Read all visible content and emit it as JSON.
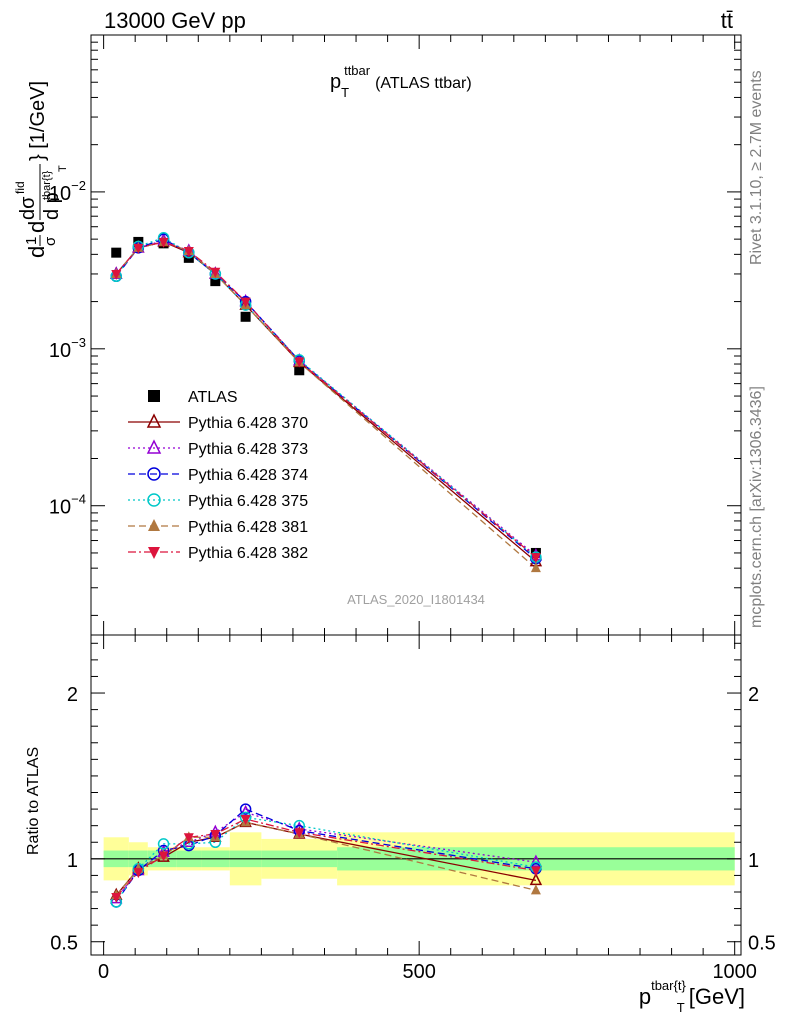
{
  "header": {
    "energy_label": "13000 GeV pp",
    "process_label": "tt̄"
  },
  "side": {
    "rivet_label": "Rivet 3.1.10, ≥ 2.7M events",
    "source_label": "mcplots.cern.ch [arXiv:1306.3436]"
  },
  "analysis_id": "ATLAS_2020_I1801434",
  "chart_data": [
    {
      "panel": "main",
      "type": "line",
      "title": {
        "main": "p",
        "sup": "ttbar",
        "sub": "T",
        "rest": "(ATLAS ttbar)"
      },
      "ylabel": {
        "d1": "d",
        "num": "1",
        "den": "σ",
        "d2": "d",
        "dnum": "dσ",
        "dnum_sup": "fid",
        "dden": "d p",
        "dden_sub": "tbar{t}",
        "dden_sub2": "T",
        "units": "} [1/GeV]"
      },
      "y_scale": "log",
      "ylim": [
        1.5e-05,
        0.1
      ],
      "y_ticks": [
        {
          "value": 0.01,
          "mant": "10",
          "exp": "−2"
        },
        {
          "value": 0.001,
          "mant": "10",
          "exp": "−3"
        },
        {
          "value": 0.0001,
          "mant": "10",
          "exp": "−4"
        }
      ],
      "legend_position": "lower-left",
      "x": [
        20,
        55,
        95,
        135,
        177,
        225,
        310,
        685
      ],
      "series": [
        {
          "name": "ATLAS",
          "color": "#000000",
          "marker": "square",
          "line": "none",
          "values": [
            0.0041,
            0.0048,
            0.0047,
            0.0038,
            0.0027,
            0.0016,
            0.00073,
            5e-05
          ]
        },
        {
          "name": "Pythia 6.428 370",
          "color": "#8b0000",
          "marker": "triangle-open",
          "line": "solid",
          "values": [
            0.003,
            0.0044,
            0.0048,
            0.0041,
            0.003,
            0.0019,
            0.00082,
            4.4e-05
          ]
        },
        {
          "name": "Pythia 6.428 373",
          "color": "#9400d3",
          "marker": "triangle-open",
          "line": "dotted",
          "values": [
            0.003,
            0.0044,
            0.0049,
            0.0042,
            0.003,
            0.002,
            0.00084,
            4.8e-05
          ]
        },
        {
          "name": "Pythia 6.428 374",
          "color": "#0000dd",
          "marker": "circle-open",
          "line": "dashed",
          "values": [
            0.0029,
            0.0044,
            0.005,
            0.0041,
            0.003,
            0.002,
            0.00084,
            4.6e-05
          ]
        },
        {
          "name": "Pythia 6.428 375",
          "color": "#00c8c8",
          "marker": "circle-open",
          "line": "dotted",
          "values": [
            0.0029,
            0.0045,
            0.0051,
            0.0041,
            0.003,
            0.0019,
            0.00085,
            4.7e-05
          ]
        },
        {
          "name": "Pythia 6.428 381",
          "color": "#b07840",
          "marker": "triangle-filled",
          "line": "dashed",
          "values": [
            0.003,
            0.0044,
            0.0048,
            0.0042,
            0.003,
            0.0019,
            0.00082,
            4e-05
          ]
        },
        {
          "name": "Pythia 6.428 382",
          "color": "#dc143c",
          "marker": "triangle-down-filled",
          "line": "dashdot",
          "values": [
            0.003,
            0.0044,
            0.0048,
            0.0042,
            0.0031,
            0.002,
            0.00083,
            4.7e-05
          ]
        }
      ]
    },
    {
      "panel": "ratio",
      "type": "line",
      "ylabel": "Ratio to ATLAS",
      "xlabel": {
        "main": "p",
        "sup": "tbar{t}",
        "sub": "T",
        "rest": "[GeV]"
      },
      "xlim": [
        -20,
        1010
      ],
      "ylim": [
        0.42,
        2.35
      ],
      "y_ticks": [
        {
          "value": 0.5,
          "label": "0.5"
        },
        {
          "value": 1,
          "label": "1"
        },
        {
          "value": 2,
          "label": "2"
        }
      ],
      "x_ticks": [
        {
          "value": 0,
          "label": "0"
        },
        {
          "value": 500,
          "label": "500"
        },
        {
          "value": 1000,
          "label": "1000"
        }
      ],
      "bins": [
        {
          "lo": 0,
          "hi": 40,
          "stat": 0.05,
          "tot": 0.13
        },
        {
          "lo": 40,
          "hi": 70,
          "stat": 0.05,
          "tot": 0.1
        },
        {
          "lo": 70,
          "hi": 115,
          "stat": 0.05,
          "tot": 0.07
        },
        {
          "lo": 115,
          "hi": 155,
          "stat": 0.05,
          "tot": 0.07
        },
        {
          "lo": 155,
          "hi": 200,
          "stat": 0.05,
          "tot": 0.07
        },
        {
          "lo": 200,
          "hi": 250,
          "stat": 0.05,
          "tot": 0.16
        },
        {
          "lo": 250,
          "hi": 370,
          "stat": 0.05,
          "tot": 0.12
        },
        {
          "lo": 370,
          "hi": 1000,
          "stat": 0.07,
          "tot": 0.16
        }
      ],
      "x": [
        20,
        55,
        95,
        135,
        177,
        225,
        310,
        685
      ],
      "series": [
        {
          "name": "Pythia 6.428 370",
          "values": [
            0.78,
            0.94,
            1.01,
            1.1,
            1.13,
            1.22,
            1.15,
            0.87
          ]
        },
        {
          "name": "Pythia 6.428 373",
          "values": [
            0.76,
            0.93,
            1.04,
            1.1,
            1.16,
            1.28,
            1.18,
            0.98
          ]
        },
        {
          "name": "Pythia 6.428 374",
          "values": [
            0.74,
            0.93,
            1.05,
            1.08,
            1.14,
            1.3,
            1.17,
            0.94
          ]
        },
        {
          "name": "Pythia 6.428 375",
          "values": [
            0.74,
            0.94,
            1.09,
            1.09,
            1.1,
            1.25,
            1.2,
            0.95
          ]
        },
        {
          "name": "Pythia 6.428 381",
          "values": [
            0.78,
            0.94,
            1.02,
            1.13,
            1.13,
            1.22,
            1.15,
            0.81
          ]
        },
        {
          "name": "Pythia 6.428 382",
          "values": [
            0.77,
            0.92,
            1.02,
            1.13,
            1.15,
            1.24,
            1.16,
            0.93
          ]
        }
      ]
    }
  ]
}
